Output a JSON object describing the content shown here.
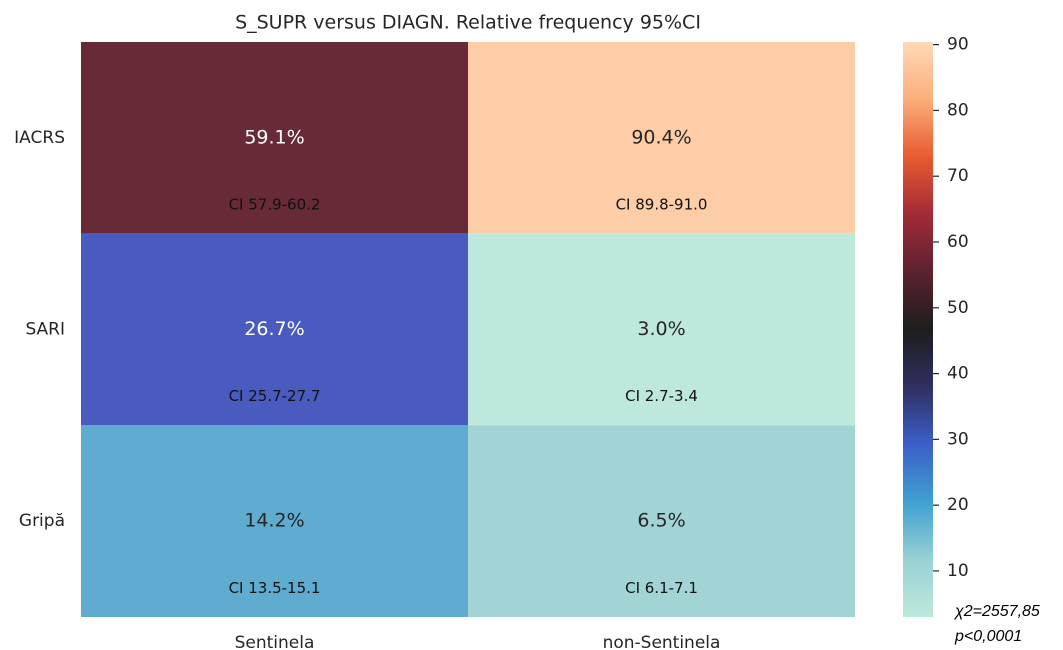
{
  "chart_data": {
    "type": "heatmap",
    "title": "S_SUPR versus DIAGN. Relative frequency 95%CI",
    "x_categories": [
      "Sentinela",
      "non-Sentinela"
    ],
    "y_categories": [
      "IACRS",
      "SARI",
      "Gripă"
    ],
    "values": [
      [
        59.1,
        90.4
      ],
      [
        26.7,
        3.0
      ],
      [
        14.2,
        6.5
      ]
    ],
    "value_labels": [
      [
        "59.1%",
        "90.4%"
      ],
      [
        "26.7%",
        "3.0%"
      ],
      [
        "14.2%",
        "6.5%"
      ]
    ],
    "ci_labels": [
      [
        "CI 57.9-60.2",
        "CI 89.8-91.0"
      ],
      [
        "CI 25.7-27.7",
        "CI 2.7-3.4"
      ],
      [
        "CI 13.5-15.1",
        "CI 6.1-7.1"
      ]
    ],
    "colors": [
      [
        "#682a36",
        "#fdcda8"
      ],
      [
        "#4a5bc0",
        "#bfe8dc"
      ],
      [
        "#60abd0",
        "#a2d4d5"
      ]
    ],
    "colorbar_colors": [
      "#bde9dc",
      "#99d1d4",
      "#3fa0d0",
      "#3b5fc8",
      "#2f2f62",
      "#1d1d1d",
      "#5b2230",
      "#a22a38",
      "#e85b30",
      "#fbae7a",
      "#ffd9b8"
    ],
    "zlim": [
      3.0,
      90.4
    ],
    "zticks": [
      10,
      20,
      30,
      40,
      50,
      60,
      70,
      80,
      90
    ],
    "annotations": [
      "χ2=2557,85",
      "p<0,0001"
    ]
  }
}
